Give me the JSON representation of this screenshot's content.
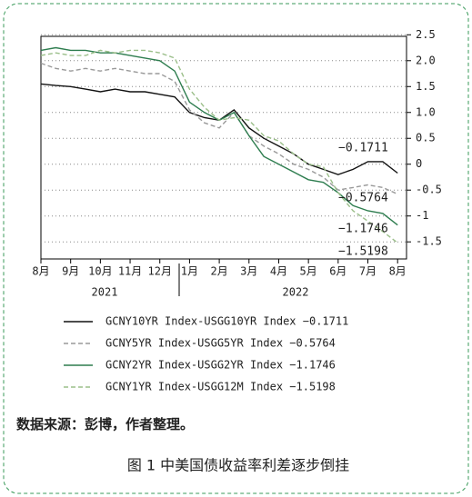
{
  "chart_data": {
    "type": "line",
    "source": "数据来源：彭博，作者整理。",
    "caption": "图 1  中美国债收益率利差逐步倒挂",
    "years": [
      "2021",
      "2022"
    ],
    "x": [
      0,
      0.5,
      1,
      1.5,
      2,
      2.5,
      3,
      3.5,
      4,
      4.5,
      5,
      5.5,
      6,
      6.5,
      7,
      7.5,
      8,
      8.5,
      9,
      9.5,
      10,
      10.5,
      11,
      11.5,
      12
    ],
    "xlim": [
      0,
      12.3
    ],
    "xticks": [
      {
        "value": 0,
        "label": "8月"
      },
      {
        "value": 1,
        "label": "9月"
      },
      {
        "value": 2,
        "label": "10月"
      },
      {
        "value": 3,
        "label": "11月"
      },
      {
        "value": 4,
        "label": "12月"
      },
      {
        "value": 5,
        "label": "1月"
      },
      {
        "value": 6,
        "label": "2月"
      },
      {
        "value": 7,
        "label": "3月"
      },
      {
        "value": 8,
        "label": "4月"
      },
      {
        "value": 9,
        "label": "5月"
      },
      {
        "value": 10,
        "label": "6月"
      },
      {
        "value": 11,
        "label": "7月"
      },
      {
        "value": 12,
        "label": "8月"
      }
    ],
    "ylim": [
      -1.83,
      2.47
    ],
    "yticks": [
      2.5,
      {
        "value": 2,
        "label": "2.0"
      },
      1.5,
      {
        "value": 1,
        "label": "1.0"
      },
      0.5,
      0,
      -0.5,
      -1,
      -1.5
    ],
    "grid": true,
    "series": [
      {
        "name": "GCNY10YR Index-USGG10YR Index −0.1711",
        "color": "#111111",
        "dash": "none",
        "values": [
          1.55,
          1.52,
          1.5,
          1.45,
          1.4,
          1.45,
          1.4,
          1.4,
          1.35,
          1.3,
          1.0,
          0.9,
          0.85,
          1.05,
          0.7,
          0.5,
          0.35,
          0.2,
          0.0,
          -0.1,
          -0.2,
          -0.1,
          0.05,
          0.05,
          -0.1711
        ]
      },
      {
        "name": "GCNY5YR Index-USGG5YR Index −0.5764",
        "color": "#999999",
        "dash": "5,3",
        "values": [
          1.95,
          1.85,
          1.8,
          1.85,
          1.8,
          1.85,
          1.8,
          1.75,
          1.75,
          1.6,
          1.05,
          0.8,
          0.7,
          1.0,
          0.55,
          0.35,
          0.2,
          0.0,
          -0.1,
          -0.25,
          -0.5,
          -0.45,
          -0.4,
          -0.45,
          -0.5764
        ]
      },
      {
        "name": "GCNY2YR Index-USGG2YR Index −1.1746",
        "color": "#2e7d4f",
        "dash": "none",
        "values": [
          2.2,
          2.25,
          2.2,
          2.2,
          2.15,
          2.15,
          2.1,
          2.05,
          2.0,
          1.8,
          1.2,
          1.0,
          0.85,
          1.0,
          0.55,
          0.15,
          0.0,
          -0.15,
          -0.3,
          -0.35,
          -0.55,
          -0.8,
          -0.9,
          -0.95,
          -1.1746
        ]
      },
      {
        "name": "GCNY1YR Index-USGG12M Index −1.5198",
        "color": "#9bbf8a",
        "dash": "5,3",
        "values": [
          2.1,
          2.15,
          2.1,
          2.1,
          2.2,
          2.15,
          2.2,
          2.2,
          2.15,
          2.05,
          1.45,
          1.1,
          0.85,
          0.9,
          0.85,
          0.55,
          0.45,
          0.2,
          0.0,
          -0.05,
          -0.55,
          -0.9,
          -1.1,
          -1.3,
          -1.5198
        ]
      }
    ],
    "annotations": [
      "−0.1711",
      "−0.5764",
      "−1.1746",
      "−1.5198"
    ]
  }
}
